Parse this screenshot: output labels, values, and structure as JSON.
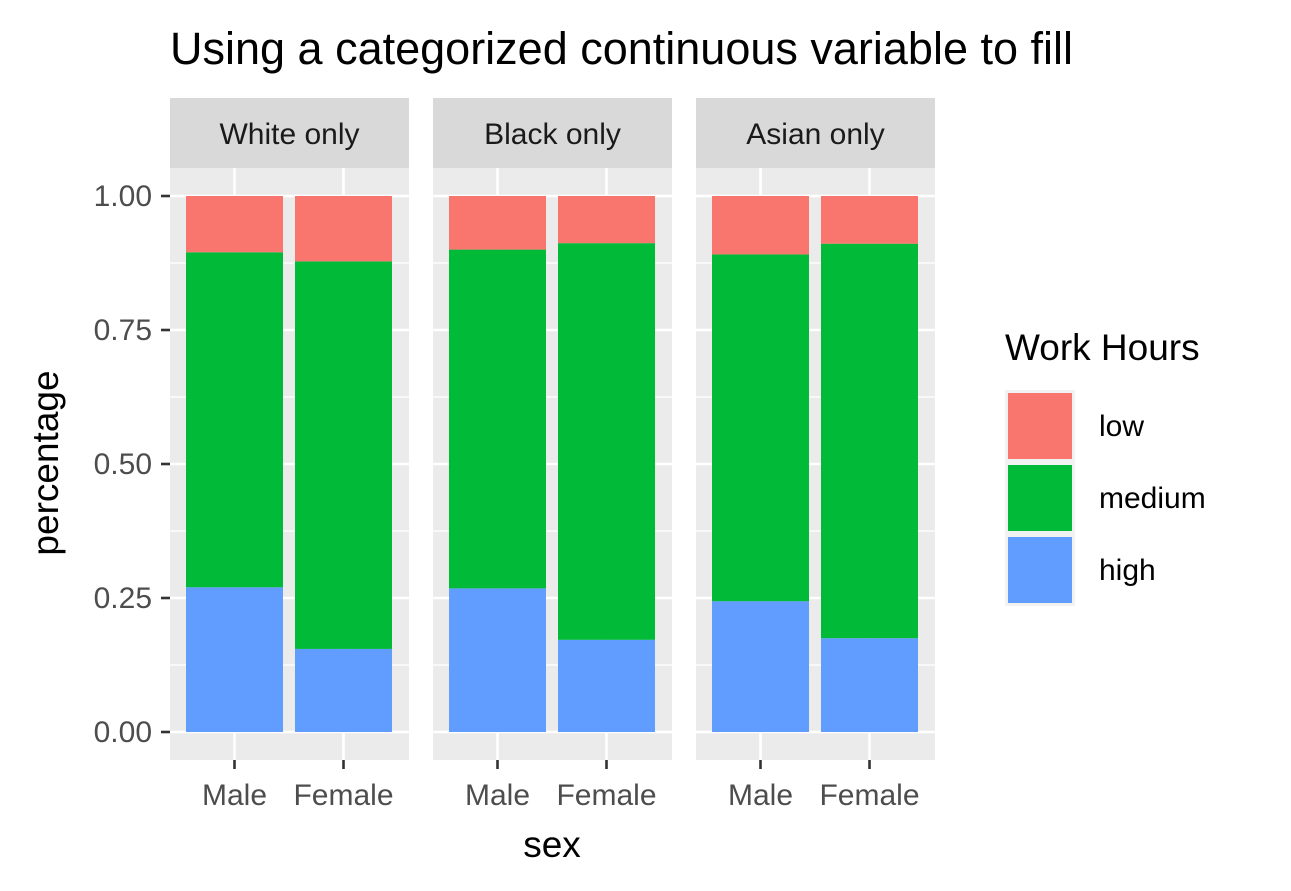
{
  "chart_data": {
    "type": "bar",
    "stacked": true,
    "position": "fill",
    "title": "Using a categorized continuous variable to fill",
    "xlabel": "sex",
    "ylabel": "percentage",
    "ylim": [
      0,
      1
    ],
    "y_ticks": [
      "0.00",
      "0.25",
      "0.50",
      "0.75",
      "1.00"
    ],
    "y_tick_values": [
      0,
      0.25,
      0.5,
      0.75,
      1
    ],
    "categories": [
      "Male",
      "Female"
    ],
    "facets": [
      {
        "label": "White only",
        "series": [
          {
            "name": "high",
            "values": [
              0.27,
              0.155
            ]
          },
          {
            "name": "medium",
            "values": [
              0.625,
              0.723
            ]
          },
          {
            "name": "low",
            "values": [
              0.105,
              0.122
            ]
          }
        ]
      },
      {
        "label": "Black only",
        "series": [
          {
            "name": "high",
            "values": [
              0.268,
              0.172
            ]
          },
          {
            "name": "medium",
            "values": [
              0.632,
              0.74
            ]
          },
          {
            "name": "low",
            "values": [
              0.1,
              0.088
            ]
          }
        ]
      },
      {
        "label": "Asian only",
        "series": [
          {
            "name": "high",
            "values": [
              0.244,
              0.175
            ]
          },
          {
            "name": "medium",
            "values": [
              0.647,
              0.736
            ]
          },
          {
            "name": "low",
            "values": [
              0.109,
              0.089
            ]
          }
        ]
      }
    ],
    "legend": {
      "title": "Work Hours",
      "position": "right",
      "entries": [
        "low",
        "medium",
        "high"
      ]
    },
    "colors": {
      "low": "#F8766D",
      "medium": "#00BA38",
      "high": "#619CFF"
    },
    "grid": true,
    "panel_background": "#EBEBEB",
    "strip_background": "#D9D9D9"
  }
}
